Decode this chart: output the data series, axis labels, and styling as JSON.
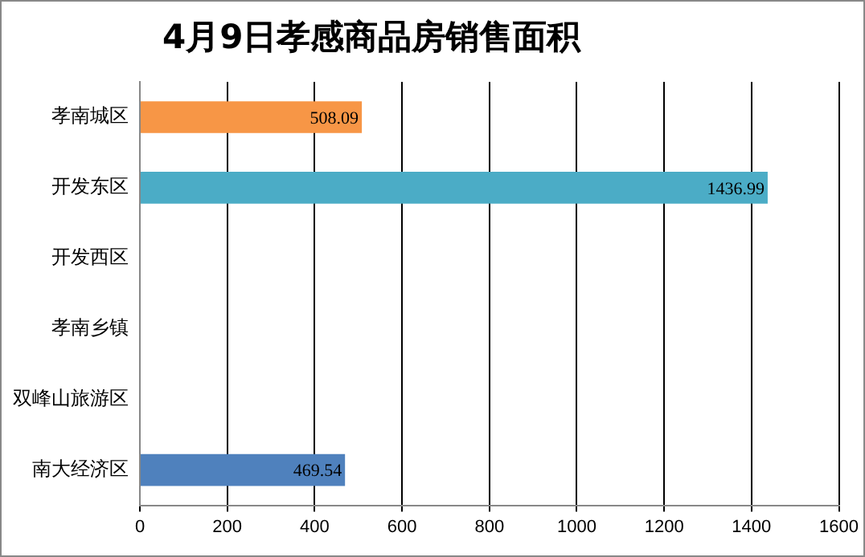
{
  "chart_data": {
    "type": "bar",
    "orientation": "horizontal",
    "title": "4月9日孝感商品房销售面积",
    "categories": [
      "孝南城区",
      "开发东区",
      "开发西区",
      "孝南乡镇",
      "双峰山旅游区",
      "南大经济区"
    ],
    "values": [
      508.09,
      1436.99,
      null,
      null,
      null,
      469.54
    ],
    "colors": [
      "#f79646",
      "#4bacc6",
      "#4bacc6",
      "#4bacc6",
      "#4bacc6",
      "#4f81bd"
    ],
    "value_labels": [
      "508.09",
      "1436.99",
      null,
      null,
      null,
      "469.54"
    ],
    "xlim": [
      0,
      1600
    ],
    "xticks": [
      0,
      200,
      400,
      600,
      800,
      1000,
      1200,
      1400,
      1600
    ],
    "grid": "x",
    "legend": false
  }
}
